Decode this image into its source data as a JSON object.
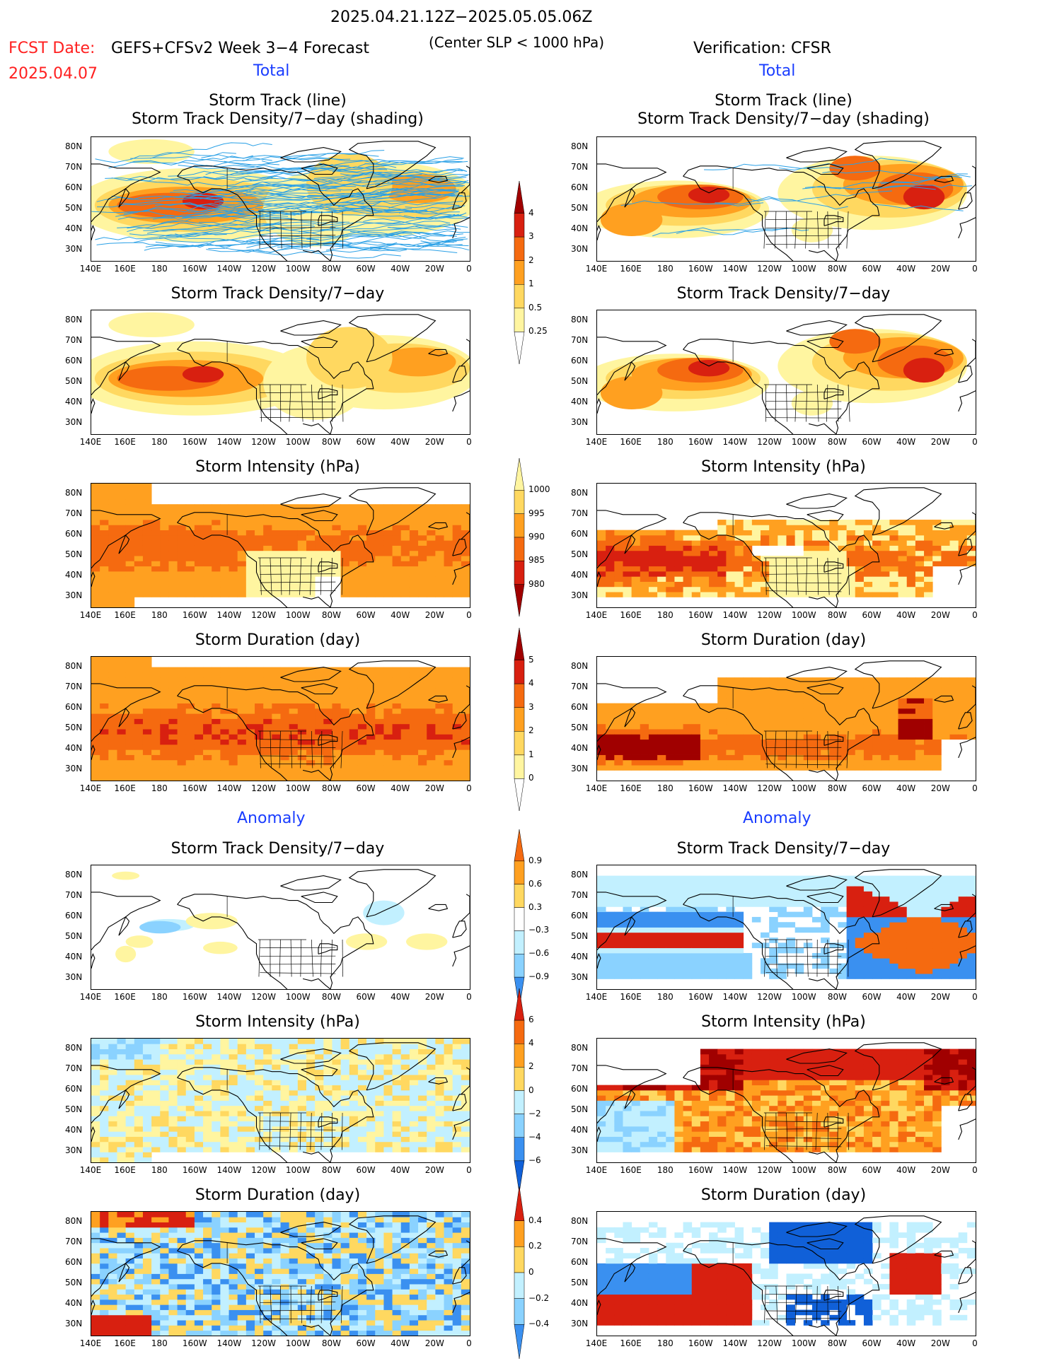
{
  "header": {
    "date_range": "2025.04.21.12Z−2025.05.05.06Z",
    "fcst_label": "FCST Date:",
    "fcst_date": "2025.04.07",
    "model": "GEFS+CFSv2 Week 3−4 Forecast",
    "criterion": "(Center SLP < 1000 hPa)",
    "verification": "Verification: CFSR",
    "total_left": "Total",
    "total_right": "Total",
    "anomaly_left": "Anomaly",
    "anomaly_right": "Anomaly"
  },
  "axes": {
    "lat_labels": [
      "80N",
      "70N",
      "60N",
      "50N",
      "40N",
      "30N"
    ],
    "lon_labels": [
      "140E",
      "160E",
      "180",
      "160W",
      "140W",
      "120W",
      "100W",
      "80W",
      "60W",
      "40W",
      "20W",
      "0"
    ]
  },
  "panels": {
    "track1_line": "Storm Track (line)",
    "track1_shade": "Storm Track Density/7−day (shading)",
    "density": "Storm Track Density/7−day",
    "intensity": "Storm Intensity (hPa)",
    "duration": "Storm Duration (day)"
  },
  "colorbars": {
    "density_total": [
      "4",
      "3",
      "2",
      "1",
      "0.5",
      "0.25"
    ],
    "intensity_total": [
      "1000",
      "995",
      "990",
      "985",
      "980"
    ],
    "duration_total": [
      "5",
      "4",
      "3",
      "2",
      "1",
      "0"
    ],
    "density_anom": [
      "0.9",
      "0.6",
      "0.3",
      "−0.3",
      "−0.6",
      "−0.9"
    ],
    "intensity_anom": [
      "6",
      "4",
      "2",
      "0",
      "−2",
      "−4",
      "−6"
    ],
    "duration_anom": [
      "0.4",
      "0.2",
      "0",
      "−0.2",
      "−0.4"
    ]
  },
  "colors": {
    "warm": [
      "#fff5a0",
      "#ffd860",
      "#ffa020",
      "#f56a10",
      "#d82010",
      "#a00000"
    ],
    "cool": [
      "#c2f0ff",
      "#8ad2ff",
      "#3a90f0",
      "#1060d8"
    ],
    "track_line": "#2aa0e6",
    "fcst_text": "#ff2020",
    "label_blue": "#1a3dff"
  }
}
